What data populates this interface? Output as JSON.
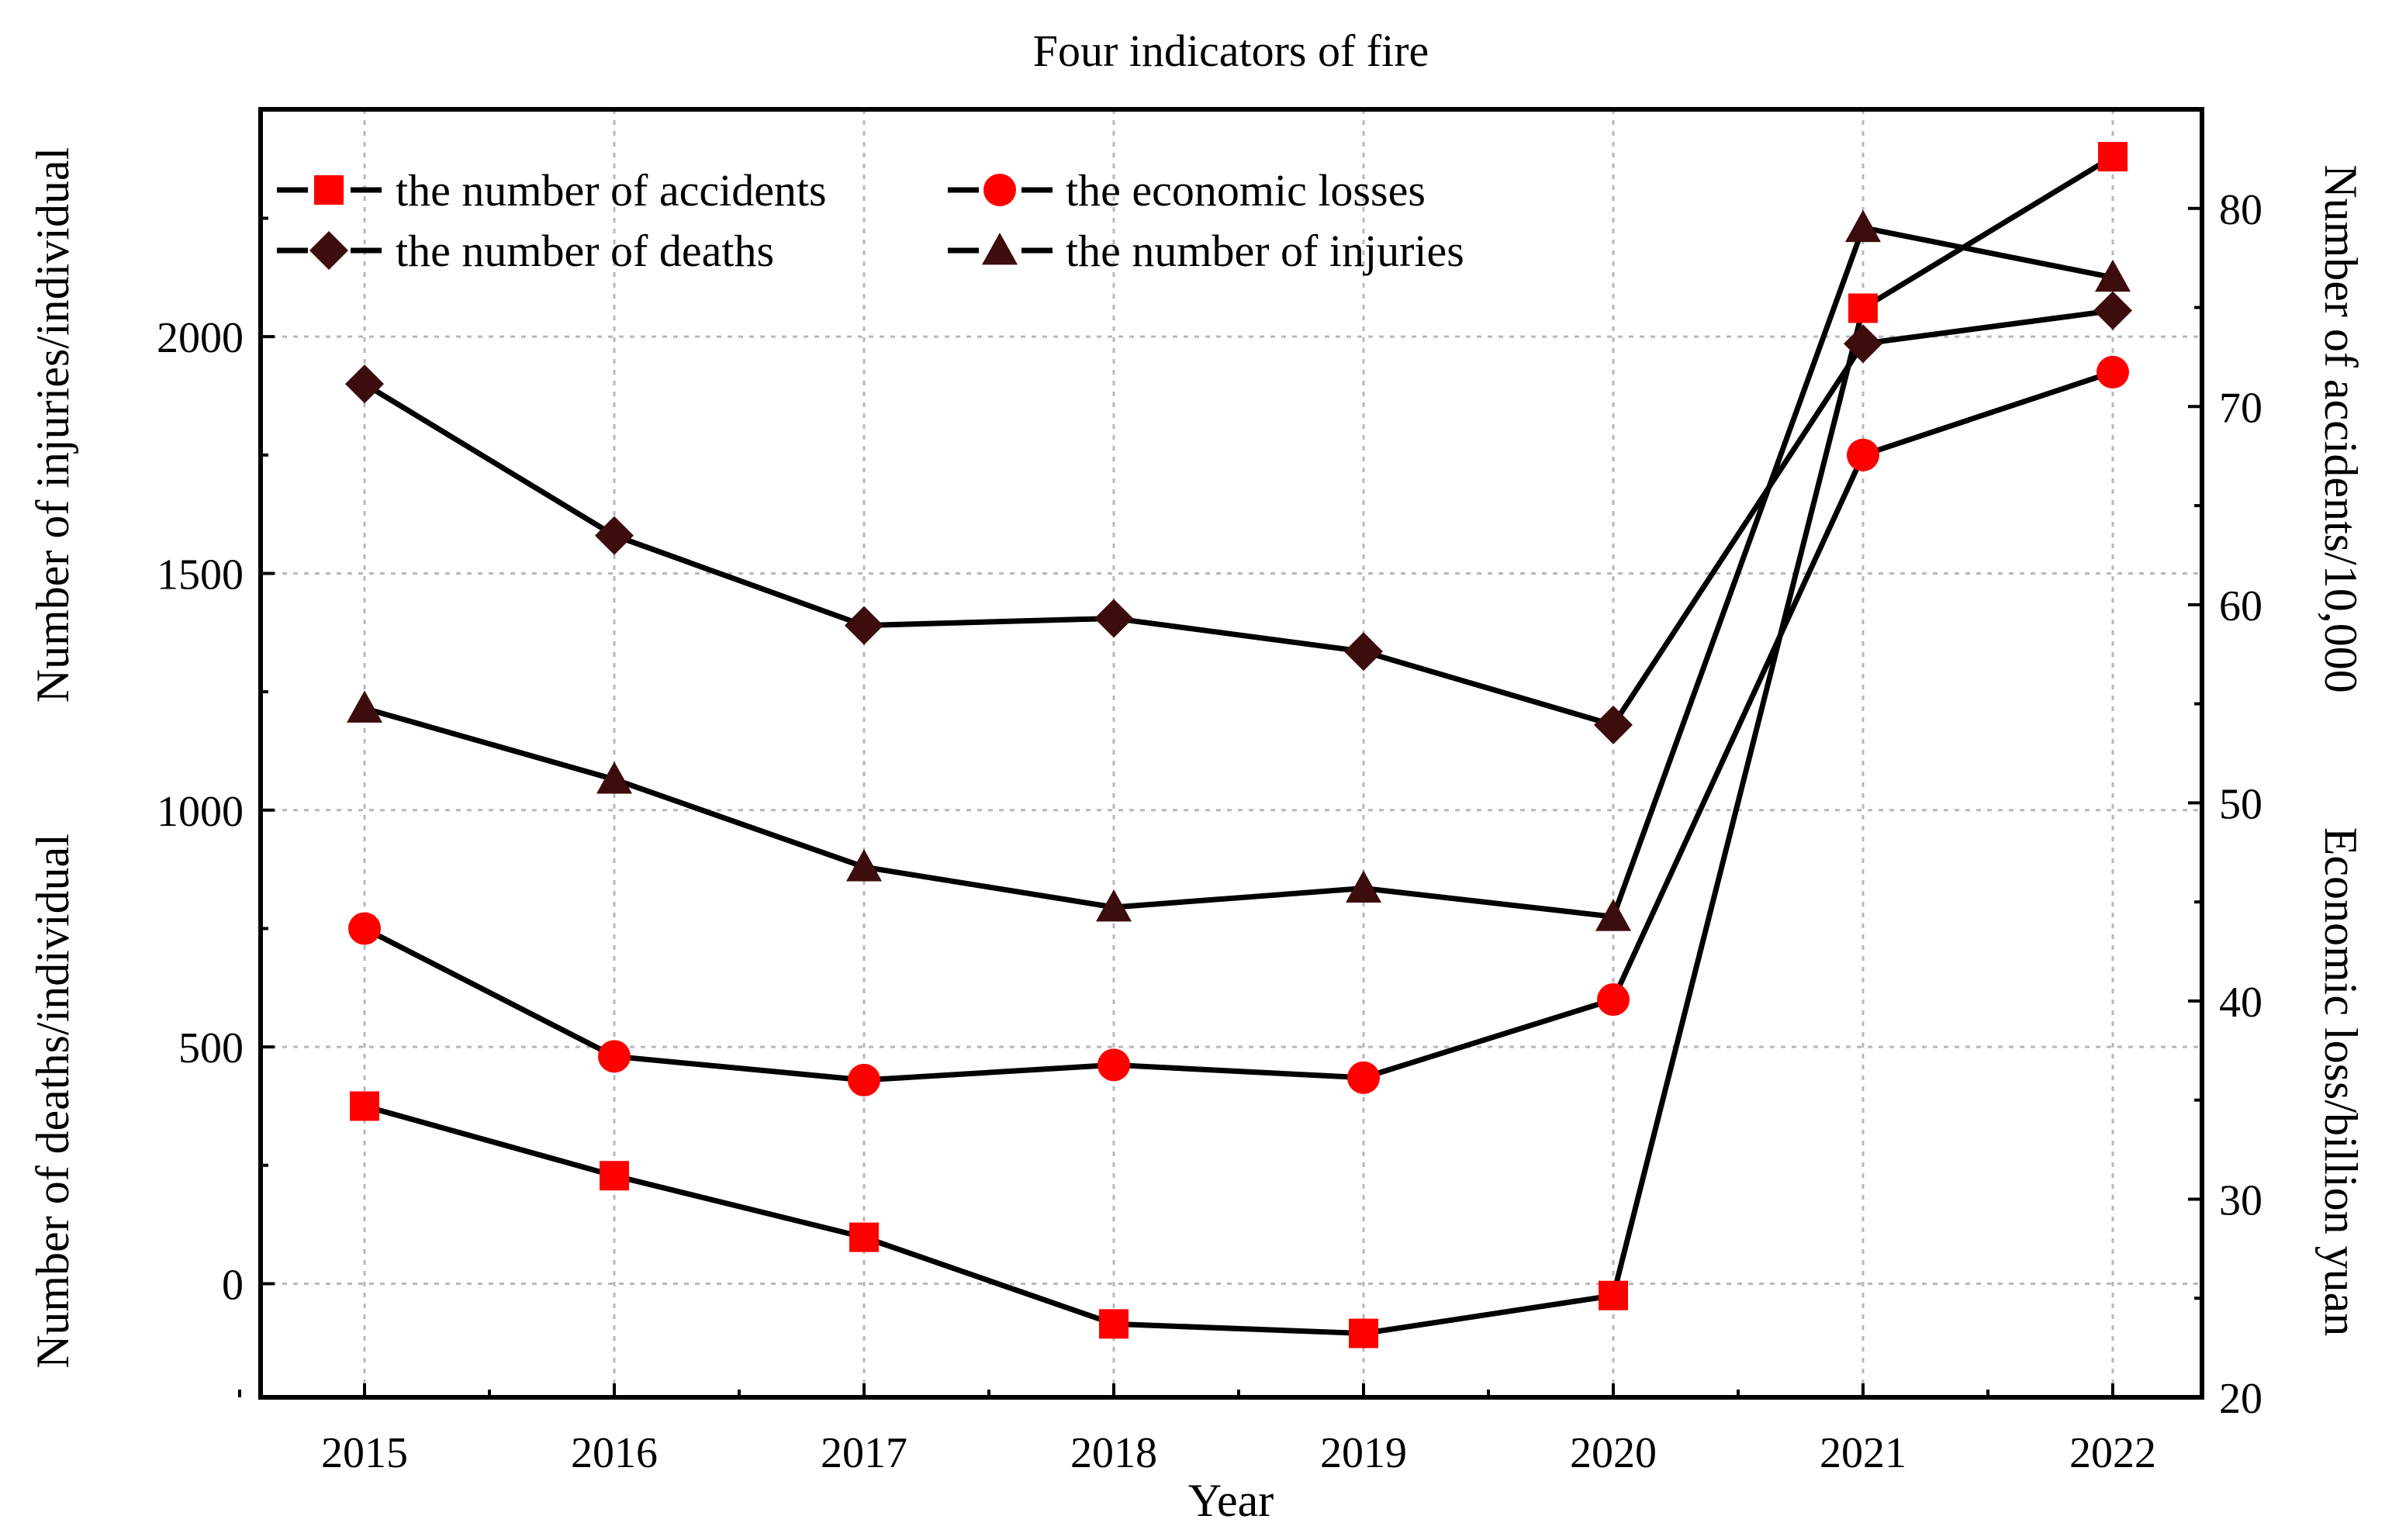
{
  "chart_data": {
    "type": "line",
    "title": "Four indicators of fire",
    "xlabel": "Year",
    "ylabel_left_top": "Number of injuries/individual",
    "ylabel_left_bottom": "Number of deaths/individual",
    "ylabel_right_top": "Number of accidents/10,000",
    "ylabel_right_bottom": "Economic loss/billion yuan",
    "categories": [
      "2015",
      "2016",
      "2017",
      "2018",
      "2019",
      "2020",
      "2021",
      "2022"
    ],
    "y_left": {
      "range": [
        -240,
        2480
      ],
      "ticks": [
        0,
        500,
        1000,
        1500,
        2000
      ]
    },
    "y_right": {
      "range": [
        20,
        85
      ],
      "ticks": [
        20,
        30,
        40,
        50,
        60,
        70,
        80
      ]
    },
    "grid": true,
    "legend_position": "top-left",
    "series": [
      {
        "name": "the number of accidents",
        "axis": "left",
        "marker": "square",
        "color": "#ff0000",
        "values": [
          375,
          228,
          98,
          -85,
          -105,
          -25,
          2060,
          2380
        ]
      },
      {
        "name": "the economic losses",
        "axis": "left",
        "marker": "circle",
        "color": "#ff0000",
        "values": [
          750,
          480,
          430,
          462,
          435,
          600,
          1750,
          1925
        ]
      },
      {
        "name": "the number of deaths",
        "axis": "left",
        "marker": "diamond",
        "color": "#3d0c0c",
        "values": [
          1900,
          1580,
          1390,
          1405,
          1335,
          1180,
          1985,
          2055
        ]
      },
      {
        "name": "the number of injuries",
        "axis": "left",
        "marker": "triangle",
        "color": "#3d0c0c",
        "values": [
          1215,
          1065,
          880,
          795,
          835,
          775,
          2230,
          2125
        ]
      }
    ]
  }
}
